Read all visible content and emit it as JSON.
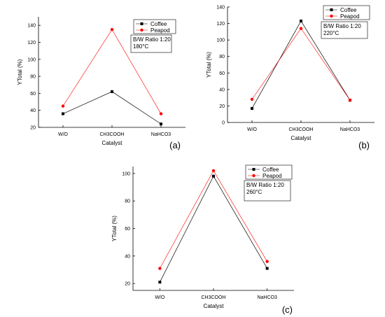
{
  "chart_data": [
    {
      "type": "line",
      "panel_label": "(a)",
      "categories": [
        "W/O",
        "CH3COOH",
        "NaHCO3"
      ],
      "series": [
        {
          "name": "Coffee",
          "color": "#000000",
          "marker": "square",
          "values": [
            36,
            62,
            24
          ]
        },
        {
          "name": "Peapod",
          "color": "#ff0000",
          "marker": "circle",
          "values": [
            45,
            135,
            36
          ]
        }
      ],
      "xlabel": "Catalyst",
      "ylabel": "YTotal (%)",
      "ylim": [
        20,
        150
      ],
      "yticks": [
        20,
        40,
        60,
        80,
        100,
        120,
        140
      ],
      "legend_position": "top-right",
      "annotation": [
        "B/W Ratio 1:20",
        "180°C"
      ]
    },
    {
      "type": "line",
      "panel_label": "(b)",
      "categories": [
        "W/O",
        "CH3COOH",
        "NaHCO3"
      ],
      "series": [
        {
          "name": "Coffee",
          "color": "#000000",
          "marker": "square",
          "values": [
            17,
            123,
            27
          ]
        },
        {
          "name": "Peapod",
          "color": "#ff0000",
          "marker": "circle",
          "values": [
            28,
            114,
            27
          ]
        }
      ],
      "xlabel": "Catalyst",
      "ylabel": "YTotal (%)",
      "ylim": [
        0,
        140
      ],
      "yticks": [
        0,
        20,
        40,
        60,
        80,
        100,
        120,
        140
      ],
      "legend_position": "top-right",
      "annotation": [
        "B/W Ratio 1:20",
        "220°C"
      ]
    },
    {
      "type": "line",
      "panel_label": "(c)",
      "categories": [
        "W/O",
        "CH3COOH",
        "NaHCO3"
      ],
      "series": [
        {
          "name": "Coffee",
          "color": "#000000",
          "marker": "square",
          "values": [
            21,
            98,
            31
          ]
        },
        {
          "name": "Peapod",
          "color": "#ff0000",
          "marker": "circle",
          "values": [
            31,
            102,
            36
          ]
        }
      ],
      "xlabel": "Catalyst",
      "ylabel": "YTotal (%)",
      "ylim": [
        15,
        105
      ],
      "yticks": [
        20,
        40,
        60,
        80,
        100
      ],
      "legend_position": "top-right",
      "annotation": [
        "B/W Ratio 1:20",
        "260°C"
      ]
    }
  ]
}
